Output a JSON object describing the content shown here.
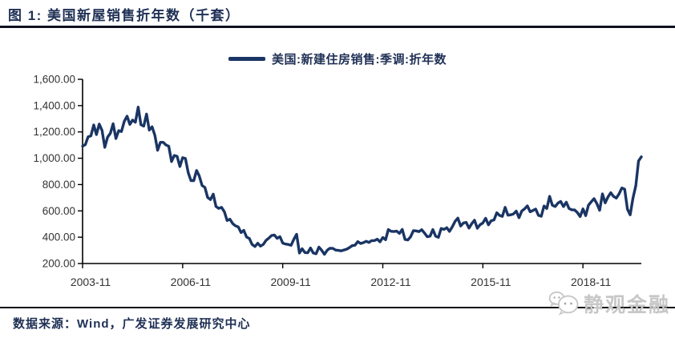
{
  "header": {
    "title": "图 1:  美国新屋销售折年数（千套）"
  },
  "footer": {
    "source": "数据来源：Wind，广发证券发展研究中心",
    "watermark": "静观金融"
  },
  "colors": {
    "line": "#1A3564",
    "navy_text": "#1F3055",
    "axis": "#000000",
    "tick_label": "#333333",
    "divider": "#10121F",
    "watermark": "#C7C7C7"
  },
  "chart_data": {
    "type": "line",
    "title": "图 1: 美国新屋销售折年数（千套）",
    "xlabel": "",
    "ylabel": "",
    "x_start": "2003-11",
    "x_end": "2020-08",
    "freq": "monthly",
    "ylim": [
      200,
      1600
    ],
    "grid": false,
    "legend_position": "top-center",
    "y_ticks": [
      200,
      400,
      600,
      800,
      1000,
      1200,
      1400,
      1600
    ],
    "y_tick_labels": [
      "200.00",
      "400.00",
      "600.00",
      "800.00",
      "1,000.00",
      "1,200.00",
      "1,400.00",
      "1,600.00"
    ],
    "x_tick_labels": [
      "2003-11",
      "2006-11",
      "2009-11",
      "2012-11",
      "2015-11",
      "2018-11"
    ],
    "x_tick_month_index": [
      0,
      36,
      72,
      108,
      144,
      180
    ],
    "series": [
      {
        "name": "美国:新建住房销售:季调:折年数",
        "color": "#1A3564",
        "values": [
          1091,
          1104,
          1163,
          1170,
          1253,
          1180,
          1260,
          1211,
          1083,
          1160,
          1190,
          1262,
          1150,
          1210,
          1203,
          1280,
          1320,
          1257,
          1290,
          1274,
          1389,
          1255,
          1244,
          1336,
          1214,
          1239,
          1174,
          1061,
          1121,
          1121,
          1101,
          1091,
          975,
          1021,
          1015,
          937,
          1004,
          998,
          890,
          830,
          830,
          907,
          865,
          793,
          778,
          702,
          686,
          727,
          634,
          619,
          627,
          593,
          526,
          537,
          503,
          487,
          478,
          435,
          452,
          401,
          390,
          344,
          329,
          354,
          332,
          345,
          376,
          393,
          413,
          417,
          391,
          404,
          355,
          348,
          345,
          338,
          384,
          422,
          280,
          312,
          283,
          282,
          318,
          280,
          274,
          325,
          301,
          270,
          301,
          316,
          315,
          302,
          300,
          296,
          303,
          309,
          321,
          336,
          339,
          366,
          352,
          358,
          369,
          360,
          374,
          374,
          385,
          365,
          398,
          381,
          458,
          445,
          443,
          446,
          429,
          459,
          383,
          379,
          403,
          450,
          448,
          442,
          457,
          432,
          403,
          408,
          458,
          408,
          399,
          466,
          459,
          472,
          444,
          479,
          521,
          545,
          485,
          508,
          513,
          469,
          503,
          529,
          468,
          495,
          508,
          544,
          494,
          525,
          531,
          586,
          566,
          558,
          627,
          567,
          570,
          577,
          598,
          548,
          599,
          615,
          638,
          593,
          603,
          614,
          566,
          559,
          637,
          618,
          711,
          643,
          633,
          659,
          672,
          633,
          666,
          618,
          608,
          607,
          587,
          557,
          615,
          564,
          644,
          669,
          693,
          656,
          604,
          729,
          661,
          706,
          738,
          710,
          697,
          730,
          774,
          765,
          612,
          570,
          698,
          791,
          979,
          1011
        ]
      }
    ]
  }
}
